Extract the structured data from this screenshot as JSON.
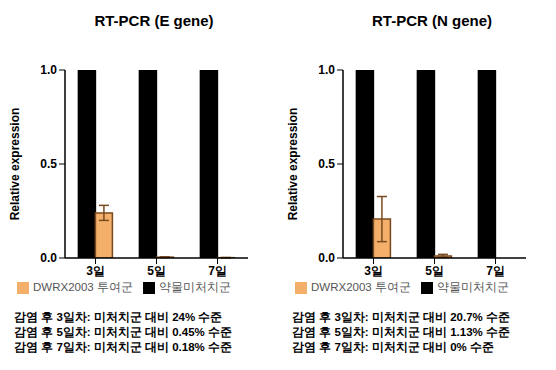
{
  "chart_data": [
    {
      "type": "bar",
      "title": "RT-PCR (E gene)",
      "ylabel": "Relative expression",
      "categories": [
        "3일",
        "5일",
        "7일"
      ],
      "series": [
        {
          "name": "약물미처치군",
          "color": "#000000",
          "values": [
            1,
            1,
            1
          ]
        },
        {
          "name": "DWRX2003 투여군",
          "color": "#f4b06b",
          "values": [
            0.24,
            0.0045,
            0.0018
          ],
          "errors": [
            0.04,
            0.002,
            0.001
          ]
        }
      ],
      "ylim": [
        0,
        1
      ],
      "yticks": [
        {
          "value": 0,
          "label": "0.0"
        },
        {
          "value": 0.5,
          "label": "0.5"
        },
        {
          "value": 1,
          "label": "1.0"
        }
      ],
      "legend": "bottom",
      "annotations": [
        "감염 후 3일차: 미처치군 대비 24% 수준",
        "감염 후 5일차: 미처치군 대비 0.45% 수준",
        "감염 후 7일차: 미처치군 대비 0.18% 수준"
      ]
    },
    {
      "type": "bar",
      "title": "RT-PCR (N gene)",
      "ylabel": "Relative expression",
      "categories": [
        "3일",
        "5일",
        "7일"
      ],
      "series": [
        {
          "name": "약물미처치군",
          "color": "#000000",
          "values": [
            1,
            1,
            1
          ]
        },
        {
          "name": "DWRX2003 투여군",
          "color": "#f4b06b",
          "values": [
            0.207,
            0.0113,
            0
          ],
          "errors": [
            0.12,
            0.008,
            0
          ]
        }
      ],
      "ylim": [
        0,
        1
      ],
      "yticks": [
        {
          "value": 0,
          "label": "0.0"
        },
        {
          "value": 0.5,
          "label": "0.5"
        },
        {
          "value": 1,
          "label": "1.0"
        }
      ],
      "legend": "bottom",
      "annotations": [
        "감염 후 3일차: 미처치군 대비 20.7% 수준",
        "감염 후 5일차: 미처치군 대비 1.13% 수준",
        "감염 후 7일차: 미처치군 대비 0% 수준"
      ]
    }
  ]
}
